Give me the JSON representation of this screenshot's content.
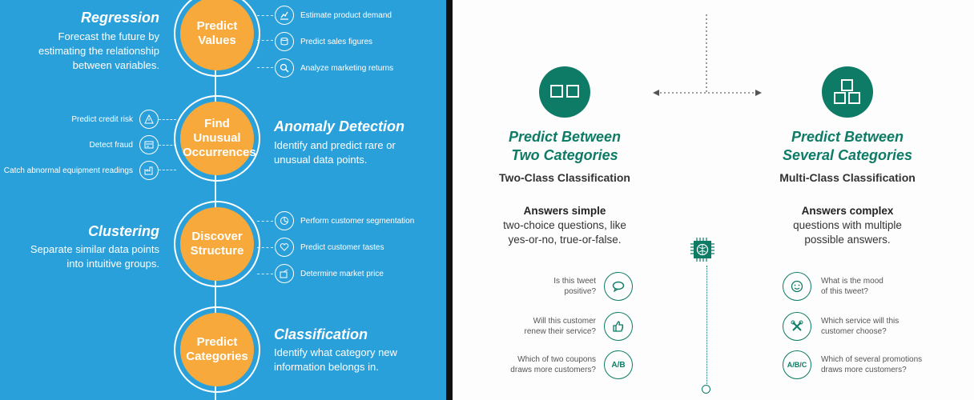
{
  "left": {
    "sections": [
      {
        "circle": "Predict Values",
        "title": "Regression",
        "desc": [
          "Forecast the future by",
          "estimating the relationship",
          "between variables."
        ]
      },
      {
        "circle": "Find Unusual Occurrences",
        "title": "Anomaly Detection",
        "desc": [
          "Identify and predict rare or",
          "unusual data points."
        ]
      },
      {
        "circle": "Discover Structure",
        "title": "Clustering",
        "desc": [
          "Separate similar data points",
          "into intuitive groups."
        ]
      },
      {
        "circle": "Predict Categories",
        "title": "Classification",
        "desc": [
          "Identify what category new",
          "information belongs in."
        ]
      }
    ],
    "regression_items": [
      {
        "icon": "chart-icon",
        "label": "Estimate product demand"
      },
      {
        "icon": "coins-icon",
        "label": "Predict sales figures"
      },
      {
        "icon": "magnifier-icon",
        "label": "Analyze marketing returns"
      }
    ],
    "anomaly_items": [
      {
        "icon": "warning-icon",
        "label": "Predict credit risk"
      },
      {
        "icon": "card-icon",
        "label": "Detect fraud"
      },
      {
        "icon": "factory-icon",
        "label": "Catch abnormal equipment readings"
      }
    ],
    "clustering_items": [
      {
        "icon": "segment-icon",
        "label": "Perform customer segmentation"
      },
      {
        "icon": "heart-icon",
        "label": "Predict customer tastes"
      },
      {
        "icon": "price-icon",
        "label": "Determine market price"
      }
    ]
  },
  "right": {
    "two": {
      "title_line1": "Predict Between",
      "title_line2": "Two Categories",
      "subtitle": "Two-Class Classification",
      "answers_bold": "Answers simple",
      "answers_rest": [
        "two-choice questions, like",
        "yes-or-no, true-or-false."
      ],
      "questions": [
        {
          "icon": "speech-bubble-icon",
          "icon_text": "",
          "q": [
            "Is this tweet",
            "positive?"
          ]
        },
        {
          "icon": "thumbs-up-icon",
          "icon_text": "",
          "q": [
            "Will this customer",
            "renew their service?"
          ]
        },
        {
          "icon": "ab-icon",
          "icon_text": "A/B",
          "q": [
            "Which of two coupons",
            "draws more customers?"
          ]
        }
      ]
    },
    "several": {
      "title_line1": "Predict Between",
      "title_line2": "Several Categories",
      "subtitle": "Multi-Class Classification",
      "answers_bold": "Answers complex",
      "answers_rest": [
        "questions with multiple",
        "possible answers."
      ],
      "questions": [
        {
          "icon": "smiley-icon",
          "icon_text": "",
          "q": [
            "What is the mood",
            "of this tweet?"
          ]
        },
        {
          "icon": "tools-icon",
          "icon_text": "",
          "q": [
            "Which service will this",
            "customer choose?"
          ]
        },
        {
          "icon": "abc-icon",
          "icon_text": "A/B/C",
          "q": [
            "Which of several promotions",
            "draws more customers?"
          ]
        }
      ]
    },
    "accent_color": "#0d7b66"
  },
  "colors": {
    "left_bg": "#2aa0db",
    "orange": "#f7a93b"
  }
}
